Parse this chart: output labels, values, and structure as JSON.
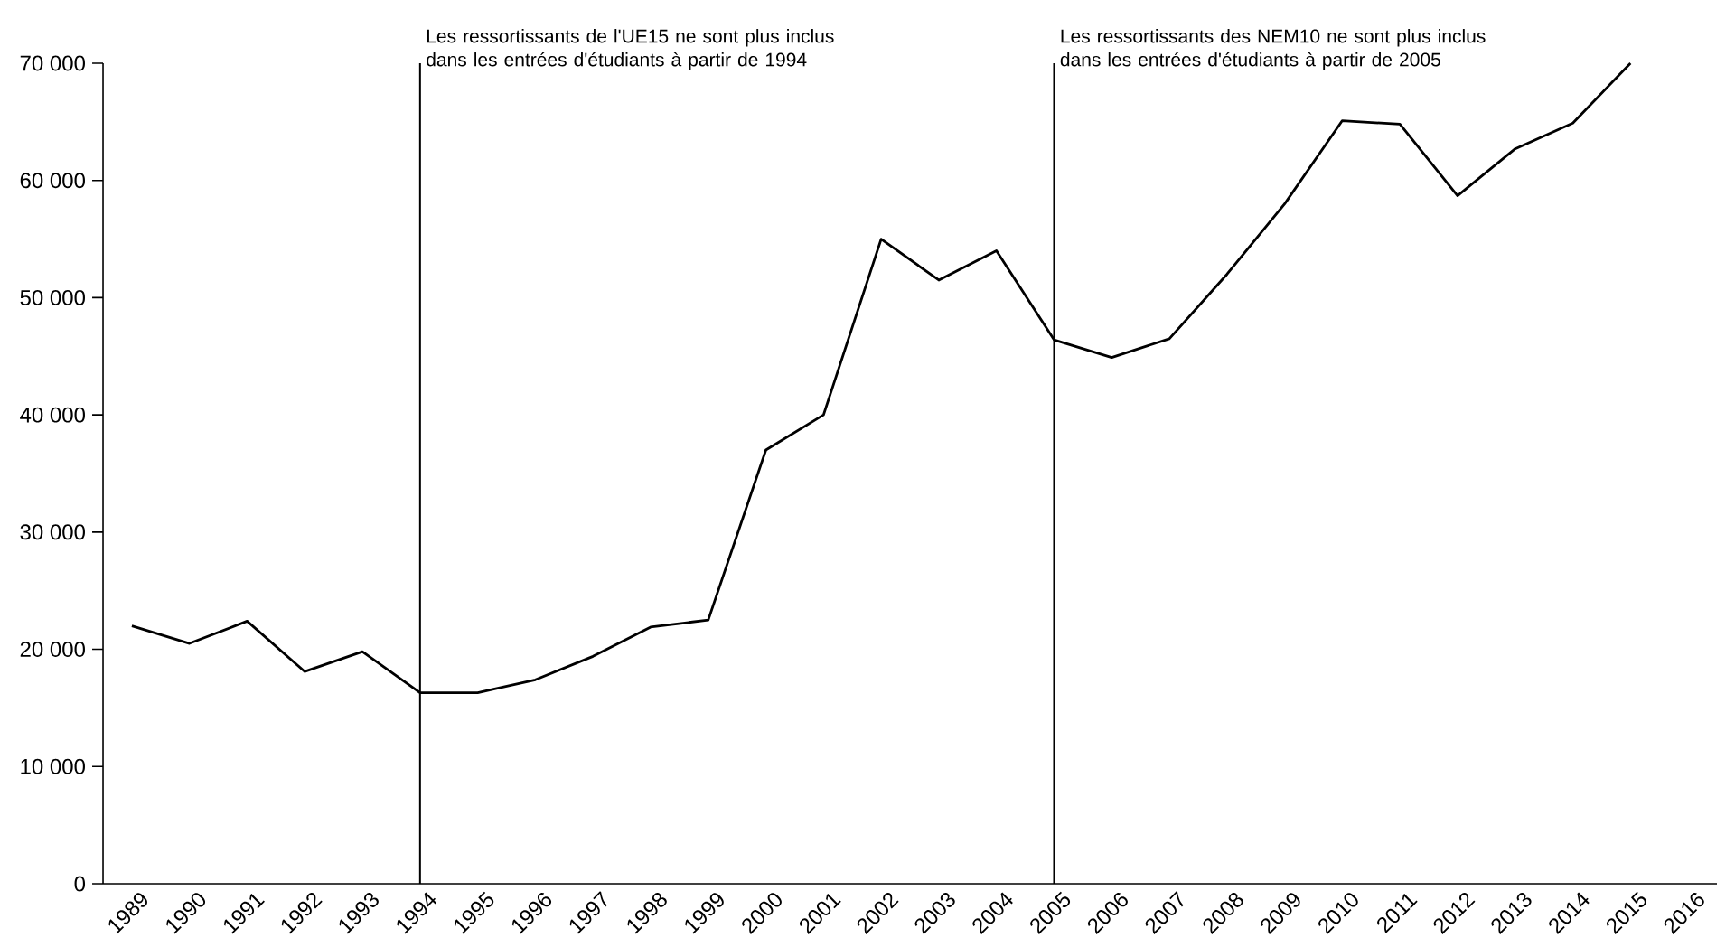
{
  "chart_data": {
    "type": "line",
    "categories": [
      "1989",
      "1990",
      "1991",
      "1992",
      "1993",
      "1994",
      "1995",
      "1996",
      "1997",
      "1998",
      "1999",
      "2000",
      "2001",
      "2002",
      "2003",
      "2004",
      "2005",
      "2006",
      "2007",
      "2008",
      "2009",
      "2010",
      "2011",
      "2012",
      "2013",
      "2014",
      "2015",
      "2016"
    ],
    "values": [
      22000,
      20500,
      22400,
      18100,
      19800,
      16300,
      16300,
      17400,
      19400,
      21900,
      22500,
      37000,
      40000,
      55000,
      51500,
      54000,
      46400,
      44900,
      46500,
      52000,
      58000,
      65100,
      64800,
      58700,
      62700,
      64900,
      70000,
      null
    ],
    "color": "#000000",
    "ylim": [
      0,
      70000
    ],
    "yticks": [
      {
        "value": 0,
        "label": "0"
      },
      {
        "value": 10000,
        "label": "10 000"
      },
      {
        "value": 20000,
        "label": "20 000"
      },
      {
        "value": 30000,
        "label": "30 000"
      },
      {
        "value": 40000,
        "label": "40 000"
      },
      {
        "value": 50000,
        "label": "50 000"
      },
      {
        "value": 60000,
        "label": "60 000"
      },
      {
        "value": 70000,
        "label": "70 000"
      }
    ],
    "ref_lines": [
      {
        "axis": "x",
        "value": "1994",
        "label": "Les ressortissants de l'UE15 ne sont plus inclus dans les entrées d'étudiants à partir de 1994",
        "color": "#000000"
      },
      {
        "axis": "x",
        "value": "2005",
        "label": "Les ressortissants des NEM10 ne sont plus inclus dans les entrées d'étudiants à partir de 2005",
        "color": "#000000"
      }
    ]
  }
}
